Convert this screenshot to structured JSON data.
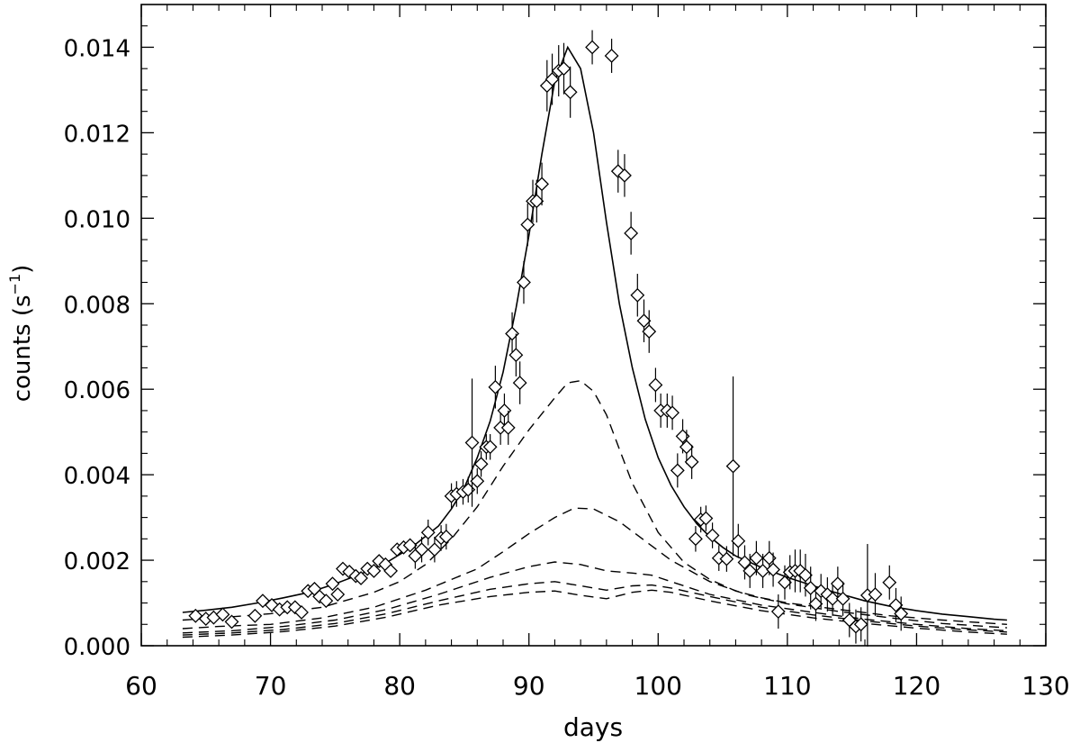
{
  "chart_data": {
    "type": "scatter",
    "xlabel": "days",
    "ylabel": "counts (s",
    "ylabel_sup": "−1",
    "ylabel_close": ")",
    "xlim": [
      60,
      130
    ],
    "ylim": [
      0.0,
      0.015
    ],
    "xticks": [
      60,
      70,
      80,
      90,
      100,
      110,
      120,
      130
    ],
    "xtick_labels": [
      "60",
      "70",
      "80",
      "90",
      "100",
      "110",
      "120",
      "130"
    ],
    "yticks": [
      0.0,
      0.002,
      0.004,
      0.006,
      0.008,
      0.01,
      0.012,
      0.014
    ],
    "ytick_labels": [
      "0.000",
      "0.002",
      "0.004",
      "0.006",
      "0.008",
      "0.010",
      "0.012",
      "0.014"
    ],
    "grid": false,
    "observations": [
      [
        64.2,
        0.0007,
        8e-05
      ],
      [
        65.0,
        0.00063,
        8e-05
      ],
      [
        65.6,
        0.00066,
        8e-05
      ],
      [
        66.3,
        0.00073,
        8e-05
      ],
      [
        67.0,
        0.00056,
        8e-05
      ],
      [
        68.8,
        0.0007,
        8e-05
      ],
      [
        69.4,
        0.00105,
        0.0001
      ],
      [
        70.1,
        0.00095,
        0.0001
      ],
      [
        70.7,
        0.00085,
        0.0001
      ],
      [
        71.3,
        0.0009,
        0.0001
      ],
      [
        71.9,
        0.0009,
        0.0001
      ],
      [
        72.4,
        0.00078,
        0.0001
      ],
      [
        72.9,
        0.00128,
        0.0001
      ],
      [
        73.4,
        0.00133,
        0.0001
      ],
      [
        73.8,
        0.00115,
        0.0001
      ],
      [
        74.3,
        0.00105,
        0.0001
      ],
      [
        74.8,
        0.00145,
        0.0001
      ],
      [
        75.2,
        0.0012,
        0.0001
      ],
      [
        75.6,
        0.0018,
        0.0001
      ],
      [
        76.1,
        0.00173,
        0.0001
      ],
      [
        76.6,
        0.00163,
        0.0001
      ],
      [
        77.0,
        0.00158,
        0.0001
      ],
      [
        77.5,
        0.0018,
        0.0001
      ],
      [
        78.0,
        0.00175,
        0.0001
      ],
      [
        78.4,
        0.00198,
        0.0001
      ],
      [
        78.9,
        0.0019,
        0.00012
      ],
      [
        79.3,
        0.00175,
        0.00012
      ],
      [
        79.8,
        0.00225,
        0.00012
      ],
      [
        80.3,
        0.0023,
        0.00012
      ],
      [
        80.8,
        0.00235,
        0.00015
      ],
      [
        81.2,
        0.0021,
        0.0003
      ],
      [
        81.7,
        0.00225,
        0.0003
      ],
      [
        82.2,
        0.00265,
        0.0003
      ],
      [
        82.7,
        0.00225,
        0.0003
      ],
      [
        83.2,
        0.00252,
        0.0003
      ],
      [
        83.6,
        0.00255,
        0.0003
      ],
      [
        84.0,
        0.0035,
        0.0003
      ],
      [
        84.4,
        0.00355,
        0.0003
      ],
      [
        84.9,
        0.0036,
        0.0003
      ],
      [
        85.3,
        0.00365,
        0.0003
      ],
      [
        85.6,
        0.00475,
        0.0015
      ],
      [
        86.0,
        0.00385,
        0.0003
      ],
      [
        86.3,
        0.00425,
        0.0003
      ],
      [
        86.7,
        0.00465,
        0.0003
      ],
      [
        87.0,
        0.00465,
        0.0003
      ],
      [
        87.4,
        0.00605,
        0.0005
      ],
      [
        87.8,
        0.0051,
        0.0004
      ],
      [
        88.1,
        0.0055,
        0.0004
      ],
      [
        88.4,
        0.0051,
        0.0004
      ],
      [
        88.7,
        0.0073,
        0.0005
      ],
      [
        89.0,
        0.0068,
        0.0005
      ],
      [
        89.3,
        0.00615,
        0.0005
      ],
      [
        89.6,
        0.0085,
        0.0005
      ],
      [
        89.9,
        0.00985,
        0.0005
      ],
      [
        90.3,
        0.0104,
        0.0005
      ],
      [
        90.6,
        0.0104,
        0.0005
      ],
      [
        91.0,
        0.0108,
        0.0005
      ],
      [
        91.4,
        0.0131,
        0.0006
      ],
      [
        91.8,
        0.01325,
        0.0006
      ],
      [
        92.3,
        0.01345,
        0.0006
      ],
      [
        92.7,
        0.0135,
        0.0006
      ],
      [
        93.2,
        0.01295,
        0.0006
      ],
      [
        94.9,
        0.014,
        0.0004
      ],
      [
        96.4,
        0.0138,
        0.0004
      ],
      [
        96.9,
        0.0111,
        0.0005
      ],
      [
        97.4,
        0.011,
        0.0005
      ],
      [
        97.9,
        0.00965,
        0.0005
      ],
      [
        98.4,
        0.0082,
        0.0005
      ],
      [
        98.9,
        0.0076,
        0.0005
      ],
      [
        99.3,
        0.00735,
        0.0005
      ],
      [
        99.8,
        0.0061,
        0.0004
      ],
      [
        100.2,
        0.0055,
        0.0004
      ],
      [
        100.7,
        0.0055,
        0.0004
      ],
      [
        101.1,
        0.00545,
        0.0004
      ],
      [
        101.5,
        0.0041,
        0.0004
      ],
      [
        101.9,
        0.0049,
        0.0004
      ],
      [
        102.2,
        0.00465,
        0.0004
      ],
      [
        102.6,
        0.0043,
        0.0004
      ],
      [
        102.9,
        0.0025,
        0.0003
      ],
      [
        103.3,
        0.00295,
        0.0003
      ],
      [
        103.7,
        0.00298,
        0.0003
      ],
      [
        104.2,
        0.00258,
        0.0003
      ],
      [
        104.7,
        0.00205,
        0.0003
      ],
      [
        105.3,
        0.00203,
        0.0003
      ],
      [
        105.8,
        0.0042,
        0.0021
      ],
      [
        106.2,
        0.00245,
        0.0004
      ],
      [
        106.7,
        0.00195,
        0.0004
      ],
      [
        107.1,
        0.00175,
        0.0004
      ],
      [
        107.6,
        0.00205,
        0.0004
      ],
      [
        108.1,
        0.00175,
        0.0004
      ],
      [
        108.6,
        0.00205,
        0.0004
      ],
      [
        108.9,
        0.00178,
        0.0004
      ],
      [
        109.3,
        0.0008,
        0.0004
      ],
      [
        109.8,
        0.00148,
        0.0004
      ],
      [
        110.2,
        0.00172,
        0.0004
      ],
      [
        110.6,
        0.00175,
        0.0005
      ],
      [
        111.0,
        0.00175,
        0.0005
      ],
      [
        111.4,
        0.00165,
        0.0005
      ],
      [
        111.8,
        0.00135,
        0.0005
      ],
      [
        112.2,
        0.00098,
        0.0004
      ],
      [
        112.6,
        0.00128,
        0.0004
      ],
      [
        113.1,
        0.0012,
        0.0004
      ],
      [
        113.5,
        0.0011,
        0.0004
      ],
      [
        113.9,
        0.00145,
        0.0004
      ],
      [
        114.3,
        0.0011,
        0.0004
      ],
      [
        114.8,
        0.0006,
        0.0004
      ],
      [
        115.3,
        0.00045,
        0.0004
      ],
      [
        115.7,
        0.0005,
        0.0004
      ],
      [
        116.2,
        0.00118,
        0.0012
      ],
      [
        116.8,
        0.0012,
        0.0005
      ],
      [
        117.9,
        0.00148,
        0.0004
      ],
      [
        118.4,
        0.00095,
        0.0004
      ],
      [
        118.8,
        0.00075,
        0.0004
      ]
    ],
    "model_total": [
      [
        63.2,
        0.00078
      ],
      [
        65,
        0.00083
      ],
      [
        67,
        0.0009
      ],
      [
        69,
        0.001
      ],
      [
        71,
        0.00112
      ],
      [
        73,
        0.00125
      ],
      [
        75,
        0.00145
      ],
      [
        77,
        0.00168
      ],
      [
        79,
        0.00195
      ],
      [
        81,
        0.00232
      ],
      [
        83,
        0.0028
      ],
      [
        84,
        0.0032
      ],
      [
        85,
        0.0037
      ],
      [
        86,
        0.0044
      ],
      [
        87,
        0.00525
      ],
      [
        88,
        0.0064
      ],
      [
        89,
        0.0079
      ],
      [
        90,
        0.0096
      ],
      [
        91,
        0.0115
      ],
      [
        92,
        0.0132
      ],
      [
        93,
        0.014
      ],
      [
        94,
        0.0135
      ],
      [
        95,
        0.012
      ],
      [
        96,
        0.0099
      ],
      [
        97,
        0.008
      ],
      [
        98,
        0.0065
      ],
      [
        99,
        0.0053
      ],
      [
        100,
        0.0044
      ],
      [
        101,
        0.00375
      ],
      [
        102,
        0.00325
      ],
      [
        103,
        0.00285
      ],
      [
        104,
        0.00255
      ],
      [
        105,
        0.0023
      ],
      [
        106,
        0.0021
      ],
      [
        108,
        0.00183
      ],
      [
        110,
        0.0016
      ],
      [
        112,
        0.0014
      ],
      [
        114,
        0.00122
      ],
      [
        116,
        0.00105
      ],
      [
        118,
        0.00092
      ],
      [
        120,
        0.00082
      ],
      [
        122,
        0.00074
      ],
      [
        124,
        0.00068
      ],
      [
        126,
        0.00062
      ],
      [
        127,
        0.0006
      ]
    ],
    "model_components": [
      [
        [
          63.2,
          0.0006
        ],
        [
          66,
          0.00065
        ],
        [
          70,
          0.00075
        ],
        [
          74,
          0.0009
        ],
        [
          78,
          0.00125
        ],
        [
          80,
          0.0015
        ],
        [
          82,
          0.0019
        ],
        [
          84,
          0.0025
        ],
        [
          86,
          0.00325
        ],
        [
          88,
          0.0042
        ],
        [
          90,
          0.00505
        ],
        [
          92,
          0.0058
        ],
        [
          93,
          0.00615
        ],
        [
          94,
          0.0062
        ],
        [
          95,
          0.00595
        ],
        [
          96,
          0.0054
        ],
        [
          97,
          0.0046
        ],
        [
          98,
          0.0038
        ],
        [
          100,
          0.00265
        ],
        [
          102,
          0.00195
        ],
        [
          104,
          0.00155
        ],
        [
          106,
          0.00128
        ],
        [
          108,
          0.00112
        ],
        [
          110,
          0.001
        ],
        [
          114,
          0.00085
        ],
        [
          118,
          0.0007
        ],
        [
          122,
          0.0006
        ],
        [
          127,
          0.0005
        ]
      ],
      [
        [
          63.2,
          0.0004
        ],
        [
          66,
          0.00045
        ],
        [
          70,
          0.0005
        ],
        [
          74,
          0.00065
        ],
        [
          78,
          0.0009
        ],
        [
          82,
          0.0013
        ],
        [
          86,
          0.0018
        ],
        [
          88,
          0.0022
        ],
        [
          90,
          0.00262
        ],
        [
          92,
          0.003
        ],
        [
          93.5,
          0.00322
        ],
        [
          95,
          0.0032
        ],
        [
          97,
          0.0029
        ],
        [
          99,
          0.00245
        ],
        [
          101,
          0.002
        ],
        [
          104,
          0.0015
        ],
        [
          107,
          0.00118
        ],
        [
          110,
          0.00098
        ],
        [
          114,
          0.0008
        ],
        [
          118,
          0.00065
        ],
        [
          122,
          0.00052
        ],
        [
          127,
          0.00042
        ]
      ],
      [
        [
          63.2,
          0.0003
        ],
        [
          67,
          0.00035
        ],
        [
          71,
          0.00045
        ],
        [
          75,
          0.0006
        ],
        [
          79,
          0.00085
        ],
        [
          83,
          0.0012
        ],
        [
          87,
          0.0016
        ],
        [
          90,
          0.00185
        ],
        [
          92,
          0.00196
        ],
        [
          94,
          0.0019
        ],
        [
          96,
          0.00175
        ],
        [
          98,
          0.0017
        ],
        [
          99.5,
          0.00165
        ],
        [
          101,
          0.0015
        ],
        [
          104,
          0.0012
        ],
        [
          108,
          0.00095
        ],
        [
          112,
          0.00078
        ],
        [
          116,
          0.00062
        ],
        [
          120,
          0.0005
        ],
        [
          124,
          0.0004
        ],
        [
          127,
          0.00035
        ]
      ],
      [
        [
          63.2,
          0.00025
        ],
        [
          67,
          0.0003
        ],
        [
          71,
          0.00038
        ],
        [
          75,
          0.00052
        ],
        [
          79,
          0.00075
        ],
        [
          83,
          0.00105
        ],
        [
          87,
          0.00132
        ],
        [
          90,
          0.00145
        ],
        [
          92,
          0.0015
        ],
        [
          94,
          0.0014
        ],
        [
          96,
          0.0013
        ],
        [
          98,
          0.0014
        ],
        [
          99.5,
          0.00142
        ],
        [
          101,
          0.00135
        ],
        [
          104,
          0.00115
        ],
        [
          108,
          0.0009
        ],
        [
          112,
          0.00072
        ],
        [
          116,
          0.00058
        ],
        [
          120,
          0.00046
        ],
        [
          124,
          0.00037
        ],
        [
          127,
          0.00032
        ]
      ],
      [
        [
          63.2,
          0.0002
        ],
        [
          67,
          0.00025
        ],
        [
          71,
          0.00033
        ],
        [
          75,
          0.00046
        ],
        [
          79,
          0.00067
        ],
        [
          83,
          0.00095
        ],
        [
          87,
          0.00115
        ],
        [
          90,
          0.00125
        ],
        [
          92,
          0.00128
        ],
        [
          94,
          0.00118
        ],
        [
          96,
          0.0011
        ],
        [
          98,
          0.00125
        ],
        [
          99.5,
          0.0013
        ],
        [
          101,
          0.00125
        ],
        [
          104,
          0.00105
        ],
        [
          108,
          0.00082
        ],
        [
          112,
          0.00065
        ],
        [
          116,
          0.00052
        ],
        [
          120,
          0.00041
        ],
        [
          124,
          0.00032
        ],
        [
          127,
          0.00027
        ]
      ]
    ]
  }
}
